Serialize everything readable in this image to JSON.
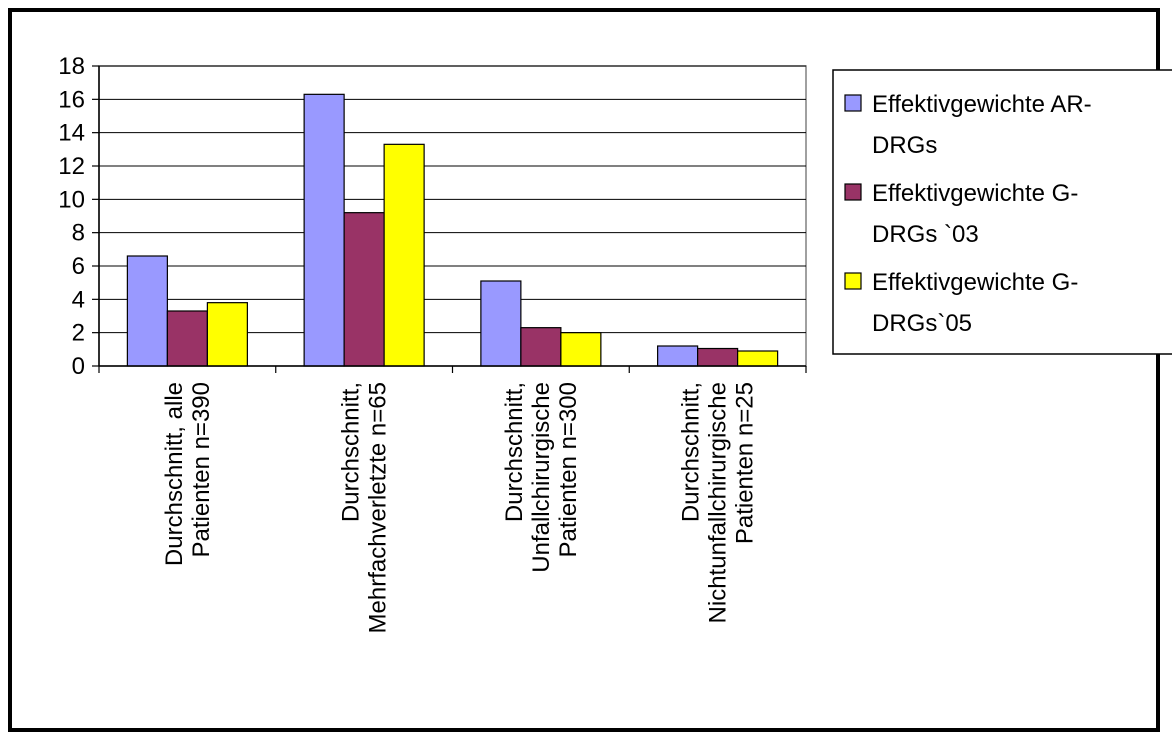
{
  "chart_data": {
    "type": "bar",
    "categories": [
      [
        "Durchschnitt,  alle",
        "Patienten n=390"
      ],
      [
        "Durchschnitt,",
        "Mehrfachverletzte n=65"
      ],
      [
        "Durchschnitt,",
        "Unfallchirurgische",
        "Patienten n=300"
      ],
      [
        "Durchschnitt,",
        "Nichtunfallchirurgische",
        "Patienten n=25"
      ]
    ],
    "series": [
      {
        "name": [
          "Effektivgewichte AR-",
          "DRGs"
        ],
        "color": "#9999ff",
        "values": [
          6.6,
          16.3,
          5.1,
          1.2
        ]
      },
      {
        "name": [
          "Effektivgewichte G-",
          "DRGs `03"
        ],
        "color": "#993366",
        "values": [
          3.3,
          9.2,
          2.3,
          1.05
        ]
      },
      {
        "name": [
          "Effektivgewichte G-",
          "DRGs`05"
        ],
        "color": "#ffff00",
        "values": [
          3.8,
          13.3,
          2.0,
          0.9
        ]
      }
    ],
    "yticks": [
      "0",
      "2",
      "4",
      "6",
      "8",
      "10",
      "12",
      "14",
      "16",
      "18"
    ],
    "ylim": [
      0,
      18
    ],
    "grid": true,
    "legend_position": "right",
    "plot_background": "#ffffff",
    "gridline_color": "#000000"
  }
}
